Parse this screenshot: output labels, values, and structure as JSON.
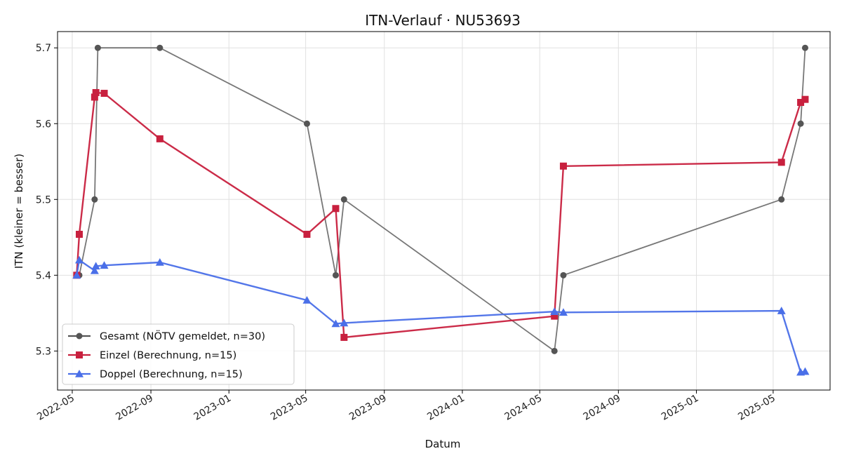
{
  "chart_data": {
    "type": "line",
    "title": "ITN-Verlauf · NU53693",
    "xlabel": "Datum",
    "ylabel": "ITN  (kleiner = besser)",
    "x_axis_type": "date",
    "xlim": [
      "2022-04-08",
      "2025-07-29"
    ],
    "ylim": [
      5.2485,
      5.7215
    ],
    "xticks": [
      "2022-05",
      "2022-09",
      "2023-01",
      "2023-05",
      "2023-09",
      "2024-01",
      "2024-05",
      "2024-09",
      "2025-01",
      "2025-05"
    ],
    "yticks": [
      5.3,
      5.4,
      5.5,
      5.6,
      5.7
    ],
    "grid": true,
    "legend_position": "lower-left",
    "series": [
      {
        "name": "Gesamt (NÖTV gemeldet, n=30)",
        "color": "#555555",
        "marker": "circle",
        "points": [
          {
            "x": "2022-05-08",
            "y": 5.4
          },
          {
            "x": "2022-05-12",
            "y": 5.4
          },
          {
            "x": "2022-06-05",
            "y": 5.5
          },
          {
            "x": "2022-06-10",
            "y": 5.7
          },
          {
            "x": "2022-09-15",
            "y": 5.7
          },
          {
            "x": "2023-05-03",
            "y": 5.6
          },
          {
            "x": "2023-06-17",
            "y": 5.4
          },
          {
            "x": "2023-06-30",
            "y": 5.5
          },
          {
            "x": "2024-05-24",
            "y": 5.3
          },
          {
            "x": "2024-06-07",
            "y": 5.4
          },
          {
            "x": "2025-05-14",
            "y": 5.5
          },
          {
            "x": "2025-06-13",
            "y": 5.6
          },
          {
            "x": "2025-06-20",
            "y": 5.7
          }
        ]
      },
      {
        "name": "Einzel (Berechnung, n=15)",
        "color": "#c8203e",
        "marker": "square",
        "points": [
          {
            "x": "2022-05-08",
            "y": 5.4
          },
          {
            "x": "2022-05-12",
            "y": 5.454
          },
          {
            "x": "2022-06-05",
            "y": 5.635
          },
          {
            "x": "2022-06-07",
            "y": 5.641
          },
          {
            "x": "2022-06-20",
            "y": 5.64
          },
          {
            "x": "2022-09-15",
            "y": 5.58
          },
          {
            "x": "2023-05-03",
            "y": 5.454
          },
          {
            "x": "2023-06-17",
            "y": 5.488
          },
          {
            "x": "2023-06-30",
            "y": 5.318
          },
          {
            "x": "2024-05-24",
            "y": 5.346
          },
          {
            "x": "2024-06-07",
            "y": 5.544
          },
          {
            "x": "2025-05-14",
            "y": 5.549
          },
          {
            "x": "2025-06-13",
            "y": 5.628
          },
          {
            "x": "2025-06-20",
            "y": 5.632
          }
        ]
      },
      {
        "name": "Doppel (Berechnung, n=15)",
        "color": "#4a6fe8",
        "marker": "triangle",
        "points": [
          {
            "x": "2022-05-08",
            "y": 5.4
          },
          {
            "x": "2022-05-12",
            "y": 5.42
          },
          {
            "x": "2022-06-05",
            "y": 5.406
          },
          {
            "x": "2022-06-07",
            "y": 5.412
          },
          {
            "x": "2022-06-20",
            "y": 5.413
          },
          {
            "x": "2022-09-15",
            "y": 5.417
          },
          {
            "x": "2023-05-03",
            "y": 5.367
          },
          {
            "x": "2023-06-17",
            "y": 5.336
          },
          {
            "x": "2023-06-30",
            "y": 5.337
          },
          {
            "x": "2024-05-24",
            "y": 5.352
          },
          {
            "x": "2024-06-07",
            "y": 5.351
          },
          {
            "x": "2025-05-14",
            "y": 5.353
          },
          {
            "x": "2025-06-13",
            "y": 5.272
          },
          {
            "x": "2025-06-20",
            "y": 5.273
          }
        ]
      }
    ]
  }
}
